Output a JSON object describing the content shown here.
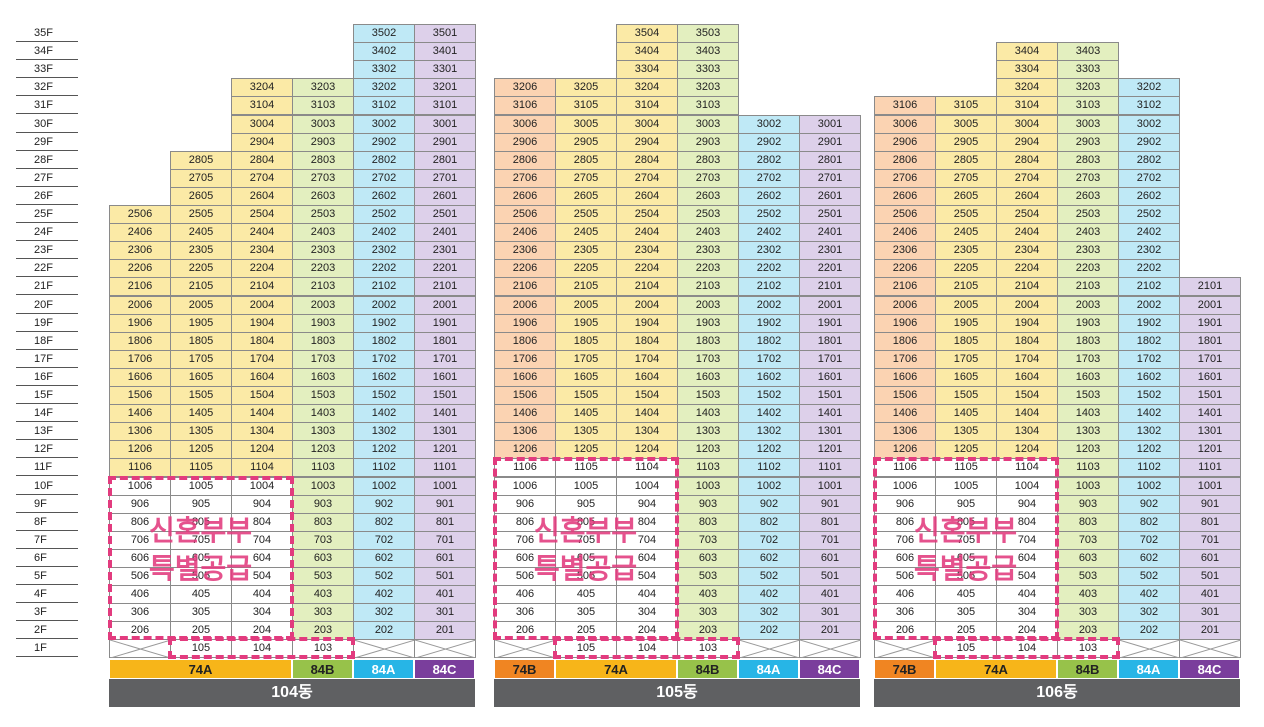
{
  "floor_labels": [
    "35F",
    "34F",
    "33F",
    "32F",
    "31F",
    "30F",
    "29F",
    "28F",
    "27F",
    "26F",
    "25F",
    "24F",
    "23F",
    "22F",
    "21F",
    "20F",
    "19F",
    "18F",
    "17F",
    "16F",
    "15F",
    "14F",
    "13F",
    "12F",
    "11F",
    "10F",
    "9F",
    "8F",
    "7F",
    "6F",
    "5F",
    "4F",
    "3F",
    "2F",
    "1F"
  ],
  "colors": {
    "yellow": "#fbeaa6",
    "green": "#e3efbf",
    "blue": "#bfe9f6",
    "purple": "#ddd0ea",
    "orange": "#fbd3b2",
    "white": "#ffffff",
    "type_74A": "#f7b519",
    "type_74B": "#f08522",
    "type_84B": "#97c24a",
    "type_84A": "#27b5e6",
    "type_84C": "#7a3e9c",
    "building_bar": "#5f6062",
    "special_supply": "#e23b7e"
  },
  "buildings": [
    {
      "name": "104동",
      "special_label": [
        "신혼부부",
        "특별공급"
      ],
      "columns": [
        {
          "suffix": "06",
          "top": 25,
          "color": "yellow",
          "white_max": 10,
          "no_1f": true
        },
        {
          "suffix": "05",
          "top": 28,
          "color": "yellow",
          "white_max": 10
        },
        {
          "suffix": "04",
          "top": 32,
          "color": "yellow",
          "white_max": 10
        },
        {
          "suffix": "03",
          "top": 32,
          "color": "green",
          "white_max": 0
        },
        {
          "suffix": "02",
          "top": 35,
          "color": "blue",
          "white_max": 0,
          "no_1f": true
        },
        {
          "suffix": "01",
          "top": 35,
          "color": "purple",
          "white_max": 0,
          "no_1f": true
        }
      ],
      "types": [
        {
          "label": "74A",
          "span": 3,
          "color": "type_74A"
        },
        {
          "label": "84B",
          "span": 1,
          "color": "type_84B"
        },
        {
          "label": "84A",
          "span": 1,
          "color": "type_84A"
        },
        {
          "label": "84C",
          "span": 1,
          "color": "type_84C"
        }
      ]
    },
    {
      "name": "105동",
      "special_label": [
        "신혼부부",
        "특별공급"
      ],
      "columns": [
        {
          "suffix": "06",
          "top": 32,
          "color": "orange",
          "white_max": 11,
          "no_1f": true
        },
        {
          "suffix": "05",
          "top": 32,
          "color": "yellow",
          "white_max": 11
        },
        {
          "suffix": "04",
          "top": 35,
          "color": "yellow",
          "white_max": 11
        },
        {
          "suffix": "03",
          "top": 35,
          "color": "green",
          "white_max": 0
        },
        {
          "suffix": "02",
          "top": 30,
          "color": "blue",
          "white_max": 0,
          "no_1f": true
        },
        {
          "suffix": "01",
          "top": 30,
          "color": "purple",
          "white_max": 0,
          "no_1f": true
        }
      ],
      "types": [
        {
          "label": "74B",
          "span": 1,
          "color": "type_74B"
        },
        {
          "label": "74A",
          "span": 2,
          "color": "type_74A"
        },
        {
          "label": "84B",
          "span": 1,
          "color": "type_84B"
        },
        {
          "label": "84A",
          "span": 1,
          "color": "type_84A"
        },
        {
          "label": "84C",
          "span": 1,
          "color": "type_84C"
        }
      ]
    },
    {
      "name": "106동",
      "special_label": [
        "신혼부부",
        "특별공급"
      ],
      "columns": [
        {
          "suffix": "06",
          "top": 31,
          "color": "orange",
          "white_max": 11,
          "no_1f": true
        },
        {
          "suffix": "05",
          "top": 31,
          "color": "yellow",
          "white_max": 11
        },
        {
          "suffix": "04",
          "top": 34,
          "color": "yellow",
          "white_max": 11
        },
        {
          "suffix": "03",
          "top": 34,
          "color": "green",
          "white_max": 0
        },
        {
          "suffix": "02",
          "top": 32,
          "color": "blue",
          "white_max": 0,
          "no_1f": true
        },
        {
          "suffix": "01",
          "top": 21,
          "color": "purple",
          "white_max": 0,
          "no_1f": true
        }
      ],
      "types": [
        {
          "label": "74B",
          "span": 1,
          "color": "type_74B"
        },
        {
          "label": "74A",
          "span": 2,
          "color": "type_74A"
        },
        {
          "label": "84B",
          "span": 1,
          "color": "type_84B"
        },
        {
          "label": "84A",
          "span": 1,
          "color": "type_84A"
        },
        {
          "label": "84C",
          "span": 1,
          "color": "type_84C"
        }
      ]
    }
  ]
}
